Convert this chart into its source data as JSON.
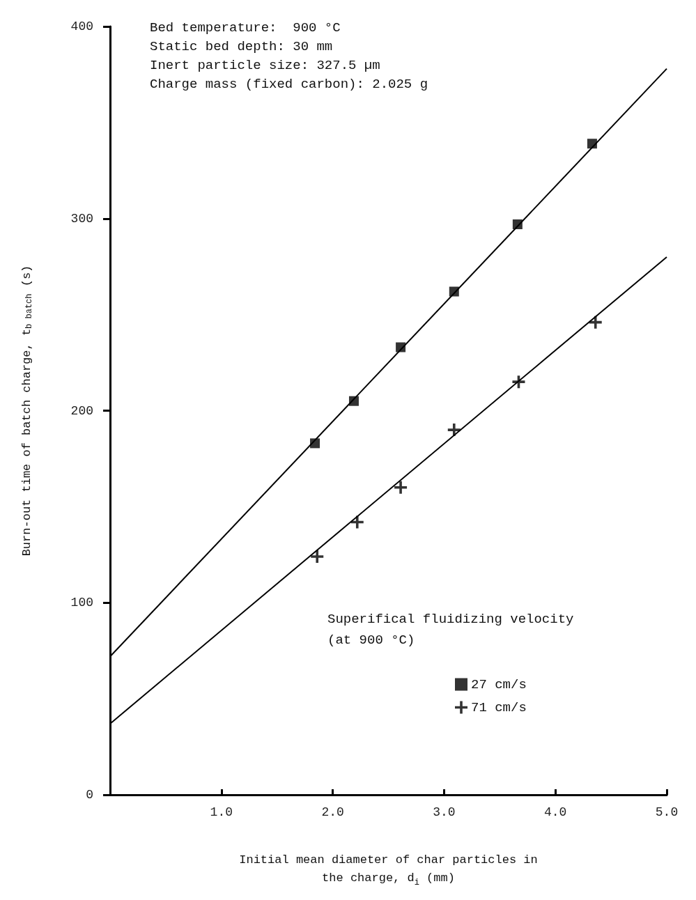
{
  "chart_data": {
    "type": "scatter",
    "xlabel": "Initial mean diameter of char particles in the charge, d$_{i}$ (mm)",
    "ylabel": "Burn-out time of batch charge, t$_{b batch}$ (s)",
    "legend_title": "Superifical fluidizing velocity (at 900 °C)",
    "annotations": [
      "Bed temperature:  900 °C",
      "Static bed depth: 30 mm",
      "Inert particle size: 327.5 µm",
      "Charge mass (fixed carbon): 2.025 g"
    ],
    "xlim": [
      0,
      5
    ],
    "xticks": [
      {
        "value": 1,
        "label": "1.0"
      },
      {
        "value": 2,
        "label": "2.0"
      },
      {
        "value": 3,
        "label": "3.0"
      },
      {
        "value": 4,
        "label": "4.0"
      },
      {
        "value": 5,
        "label": "5.0"
      }
    ],
    "ylim": [
      0,
      400
    ],
    "yticks": [
      0,
      100,
      200,
      300,
      400
    ],
    "grid": false,
    "legend": "bottom",
    "series": [
      {
        "name": "27 cm/s",
        "marker": "square",
        "color": "#000000",
        "x": [
          1.84,
          2.19,
          2.61,
          3.09,
          3.66,
          4.33
        ],
        "values": [
          183,
          205,
          233,
          262,
          297,
          339
        ]
      },
      {
        "name": "71 cm/s",
        "marker": "cross",
        "color": "#000000",
        "x": [
          1.86,
          2.22,
          2.61,
          3.09,
          3.67,
          4.36
        ],
        "values": [
          124,
          142,
          160,
          190,
          215,
          246
        ]
      },
      {
        "type": "line",
        "marker": "none",
        "color": "#000000",
        "x": [
          0,
          5
        ],
        "values": [
          72,
          378
        ]
      },
      {
        "type": "line",
        "marker": "none",
        "color": "#000000",
        "x": [
          0,
          5
        ],
        "values": [
          37,
          280
        ]
      }
    ]
  }
}
